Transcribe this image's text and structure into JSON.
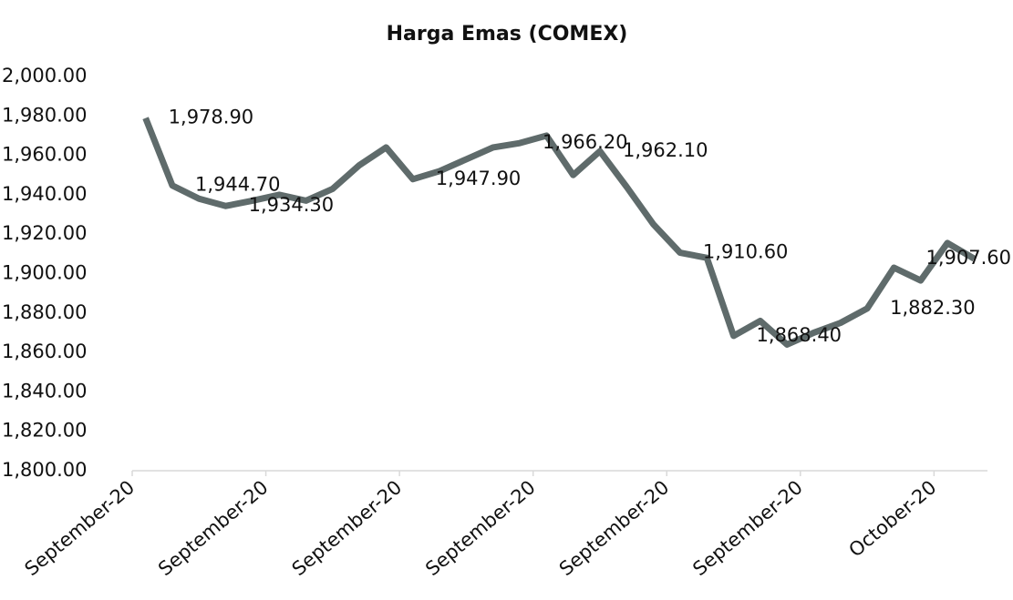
{
  "chart_data": {
    "type": "line",
    "title": "Harga Emas (COMEX)",
    "categories": [
      "September-20",
      null,
      null,
      null,
      null,
      "September-20",
      null,
      null,
      null,
      null,
      "September-20",
      null,
      null,
      null,
      null,
      "September-20",
      null,
      null,
      null,
      null,
      "September-20",
      null,
      null,
      null,
      null,
      "September-20",
      null,
      null,
      null,
      null,
      "October-20",
      null
    ],
    "series": [
      {
        "name": "Harga Emas",
        "color": "#5f6b6b",
        "values": [
          1978.9,
          1944.7,
          1938,
          1934.3,
          1937,
          1940,
          1937,
          1943,
          1955,
          1964,
          1947.9,
          1952,
          1958,
          1964,
          1966.2,
          1970,
          1950,
          1962.1,
          1944,
          1925,
          1910.6,
          1908,
          1868.4,
          1876,
          1864,
          1870,
          1875,
          1882.3,
          1903,
          1896.5,
          1915.5,
          1907.6
        ],
        "value_labels": [
          "1,978.90",
          "1,944.70",
          null,
          "1,934.30",
          null,
          null,
          null,
          null,
          null,
          null,
          "1,947.90",
          null,
          null,
          null,
          "1,966.20",
          null,
          null,
          "1,962.10",
          null,
          null,
          "1,910.60",
          null,
          "1,868.40",
          null,
          null,
          null,
          null,
          "1,882.30",
          null,
          null,
          null,
          "1,907.60"
        ]
      }
    ],
    "ylim": [
      1800,
      2000
    ],
    "yticks": [
      {
        "value": 1800,
        "label": "1,800.00"
      },
      {
        "value": 1820,
        "label": "1,820.00"
      },
      {
        "value": 1840,
        "label": "1,840.00"
      },
      {
        "value": 1860,
        "label": "1,860.00"
      },
      {
        "value": 1880,
        "label": "1,880.00"
      },
      {
        "value": 1900,
        "label": "1,900.00"
      },
      {
        "value": 1920,
        "label": "1,920.00"
      },
      {
        "value": 1940,
        "label": "1,940.00"
      },
      {
        "value": 1960,
        "label": "1,960.00"
      },
      {
        "value": 1980,
        "label": "1,980.00"
      },
      {
        "value": 2000,
        "label": "2,000.00"
      }
    ],
    "grid": false
  }
}
